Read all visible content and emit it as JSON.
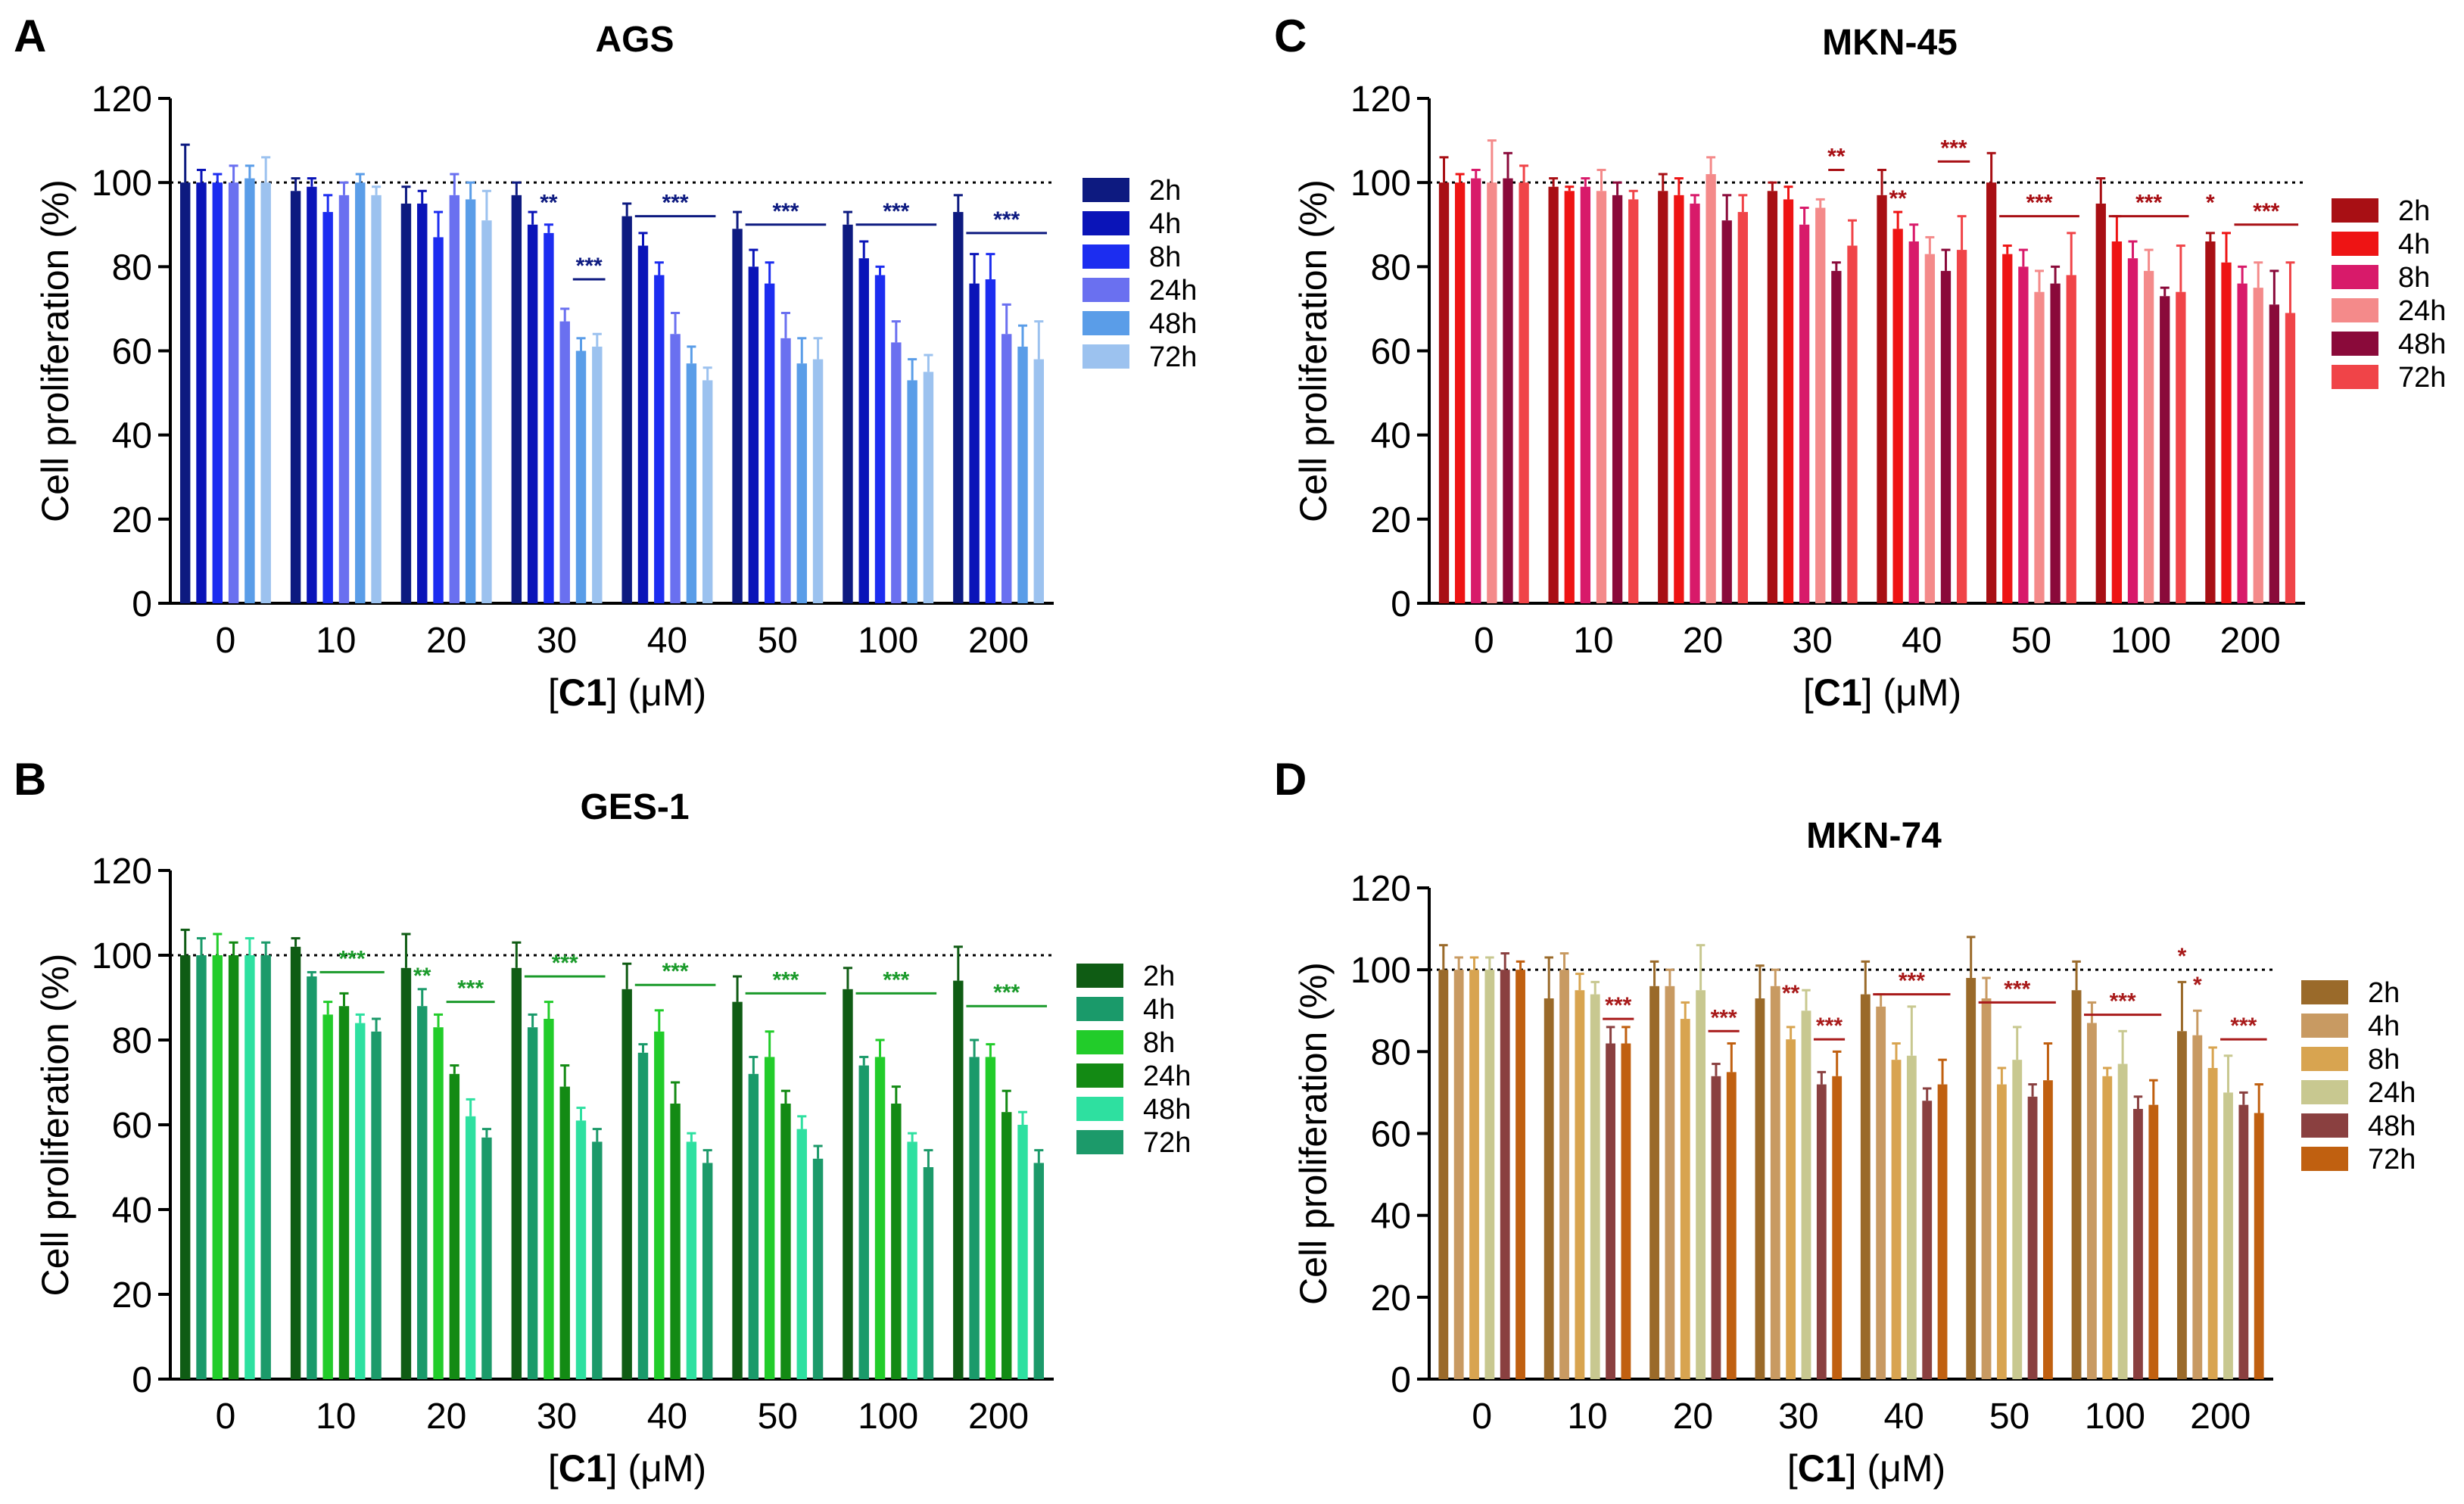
{
  "chart_data": [
    {
      "letter": "A",
      "type": "bar",
      "title": "AGS",
      "xlabel_bold": "C1",
      "xlabel_prefix": "[",
      "xlabel_suffix": "] (μM)",
      "ylabel": "Cell proliferation (%)",
      "ylim": [
        0,
        120
      ],
      "yticks": [
        "0",
        "20",
        "40",
        "60",
        "80",
        "100",
        "120"
      ],
      "reference_line": 100,
      "categories": [
        "0",
        "10",
        "20",
        "30",
        "40",
        "50",
        "100",
        "200"
      ],
      "series": [
        {
          "name": "2h",
          "color": "#0d1a80",
          "values": [
            100,
            98,
            95,
            97,
            92,
            89,
            90,
            93
          ],
          "errors": [
            9,
            3,
            4,
            3,
            3,
            4,
            3,
            4
          ]
        },
        {
          "name": "4h",
          "color": "#0a14b8",
          "values": [
            100,
            99,
            95,
            90,
            85,
            80,
            82,
            76
          ],
          "errors": [
            3,
            2,
            3,
            3,
            3,
            4,
            4,
            7
          ]
        },
        {
          "name": "8h",
          "color": "#1c2df0",
          "values": [
            100,
            93,
            87,
            88,
            78,
            76,
            78,
            77
          ],
          "errors": [
            2,
            4,
            6,
            2,
            3,
            5,
            2,
            6
          ]
        },
        {
          "name": "24h",
          "color": "#6a70f0",
          "values": [
            100,
            97,
            97,
            67,
            64,
            63,
            62,
            64
          ],
          "errors": [
            4,
            3,
            5,
            3,
            5,
            6,
            5,
            7
          ]
        },
        {
          "name": "48h",
          "color": "#5a9de8",
          "values": [
            101,
            100,
            96,
            60,
            57,
            57,
            53,
            61
          ],
          "errors": [
            3,
            2,
            4,
            3,
            4,
            6,
            5,
            5
          ]
        },
        {
          "name": "72h",
          "color": "#9cc2ef",
          "values": [
            100,
            97,
            91,
            61,
            53,
            58,
            55,
            58
          ],
          "errors": [
            6,
            2,
            7,
            3,
            3,
            5,
            4,
            9
          ]
        }
      ],
      "sig_color": "#0d1a80",
      "annotations": [
        {
          "text": "**",
          "group": 3,
          "bar_from": 2,
          "bar_to": 2,
          "y": 92,
          "line": false
        },
        {
          "text": "***",
          "group": 3,
          "bar_from": 4,
          "bar_to": 5,
          "y": 77,
          "line": true
        },
        {
          "text": "***",
          "group": 4,
          "bar_from": 1,
          "bar_to": 5,
          "y": 92,
          "line": true
        },
        {
          "text": "***",
          "group": 5,
          "bar_from": 1,
          "bar_to": 5,
          "y": 90,
          "line": true
        },
        {
          "text": "***",
          "group": 6,
          "bar_from": 1,
          "bar_to": 5,
          "y": 90,
          "line": true
        },
        {
          "text": "***",
          "group": 7,
          "bar_from": 1,
          "bar_to": 5,
          "y": 88,
          "line": true
        }
      ]
    },
    {
      "letter": "B",
      "type": "bar",
      "title": "GES-1",
      "xlabel_bold": "C1",
      "xlabel_prefix": "[",
      "xlabel_suffix": "] (μM)",
      "ylabel": "Cell proliferation (%)",
      "ylim": [
        0,
        120
      ],
      "yticks": [
        "0",
        "20",
        "40",
        "60",
        "80",
        "100",
        "120"
      ],
      "reference_line": 100,
      "categories": [
        "0",
        "10",
        "20",
        "30",
        "40",
        "50",
        "100",
        "200"
      ],
      "series": [
        {
          "name": "2h",
          "color": "#0f5c14",
          "values": [
            100,
            102,
            97,
            97,
            92,
            89,
            92,
            94
          ],
          "errors": [
            6,
            2,
            8,
            6,
            6,
            6,
            5,
            8
          ]
        },
        {
          "name": "4h",
          "color": "#1a9a6a",
          "values": [
            100,
            95,
            88,
            83,
            77,
            72,
            74,
            76
          ],
          "errors": [
            4,
            1,
            4,
            3,
            2,
            4,
            2,
            4
          ]
        },
        {
          "name": "8h",
          "color": "#22cc2a",
          "values": [
            100,
            86,
            83,
            85,
            82,
            76,
            76,
            76
          ],
          "errors": [
            5,
            3,
            3,
            4,
            5,
            6,
            4,
            3
          ]
        },
        {
          "name": "24h",
          "color": "#138a14",
          "values": [
            100,
            88,
            72,
            69,
            65,
            65,
            65,
            63
          ],
          "errors": [
            3,
            3,
            2,
            5,
            5,
            3,
            4,
            5
          ]
        },
        {
          "name": "48h",
          "color": "#2ee0a0",
          "values": [
            100,
            84,
            62,
            61,
            56,
            59,
            56,
            60
          ],
          "errors": [
            4,
            2,
            4,
            3,
            2,
            3,
            2,
            3
          ]
        },
        {
          "name": "72h",
          "color": "#1c9a6a",
          "values": [
            100,
            82,
            57,
            56,
            51,
            52,
            50,
            51
          ],
          "errors": [
            3,
            3,
            2,
            3,
            3,
            3,
            4,
            3
          ]
        }
      ],
      "sig_color": "#1a9a2a",
      "annotations": [
        {
          "text": "***",
          "group": 1,
          "bar_from": 2,
          "bar_to": 5,
          "y": 96,
          "line": true
        },
        {
          "text": "**",
          "group": 2,
          "bar_from": 1,
          "bar_to": 1,
          "y": 92,
          "line": false
        },
        {
          "text": "***",
          "group": 2,
          "bar_from": 3,
          "bar_to": 5,
          "y": 89,
          "line": true
        },
        {
          "text": "***",
          "group": 3,
          "bar_from": 1,
          "bar_to": 5,
          "y": 95,
          "line": true
        },
        {
          "text": "***",
          "group": 4,
          "bar_from": 1,
          "bar_to": 5,
          "y": 93,
          "line": true
        },
        {
          "text": "***",
          "group": 5,
          "bar_from": 1,
          "bar_to": 5,
          "y": 91,
          "line": true
        },
        {
          "text": "***",
          "group": 6,
          "bar_from": 1,
          "bar_to": 5,
          "y": 91,
          "line": true
        },
        {
          "text": "***",
          "group": 7,
          "bar_from": 1,
          "bar_to": 5,
          "y": 88,
          "line": true
        }
      ]
    },
    {
      "letter": "C",
      "type": "bar",
      "title": "MKN-45",
      "xlabel_bold": "C1",
      "xlabel_prefix": "[",
      "xlabel_suffix": "] (μM)",
      "ylabel": "Cell proliferation (%)",
      "ylim": [
        0,
        120
      ],
      "yticks": [
        "0",
        "20",
        "40",
        "60",
        "80",
        "100",
        "120"
      ],
      "reference_line": 100,
      "categories": [
        "0",
        "10",
        "20",
        "30",
        "40",
        "50",
        "100",
        "200"
      ],
      "series": [
        {
          "name": "2h",
          "color": "#a80f14",
          "values": [
            100,
            99,
            98,
            98,
            97,
            100,
            95,
            86
          ],
          "errors": [
            6,
            2,
            4,
            2,
            6,
            7,
            6,
            2
          ]
        },
        {
          "name": "4h",
          "color": "#ee1414",
          "values": [
            100,
            98,
            97,
            96,
            89,
            83,
            86,
            81
          ],
          "errors": [
            2,
            1,
            4,
            3,
            4,
            2,
            6,
            7
          ]
        },
        {
          "name": "8h",
          "color": "#d81a6a",
          "values": [
            101,
            99,
            95,
            90,
            86,
            80,
            82,
            76
          ],
          "errors": [
            2,
            2,
            2,
            4,
            4,
            4,
            4,
            4
          ]
        },
        {
          "name": "24h",
          "color": "#f48a8a",
          "values": [
            100,
            98,
            102,
            94,
            83,
            74,
            79,
            75
          ],
          "errors": [
            10,
            5,
            4,
            2,
            4,
            5,
            5,
            6
          ]
        },
        {
          "name": "48h",
          "color": "#8a0a3a",
          "values": [
            101,
            97,
            91,
            79,
            79,
            76,
            73,
            71
          ],
          "errors": [
            6,
            3,
            6,
            2,
            5,
            4,
            2,
            8
          ]
        },
        {
          "name": "72h",
          "color": "#f04448",
          "values": [
            100,
            96,
            93,
            85,
            84,
            78,
            74,
            69
          ],
          "errors": [
            4,
            2,
            4,
            6,
            8,
            10,
            11,
            12
          ]
        }
      ],
      "sig_color": "#a80f14",
      "annotations": [
        {
          "text": "**",
          "group": 3,
          "bar_from": 4,
          "bar_to": 4,
          "y": 103,
          "line": true
        },
        {
          "text": "**",
          "group": 4,
          "bar_from": 1,
          "bar_to": 1,
          "y": 93,
          "line": false
        },
        {
          "text": "***",
          "group": 4,
          "bar_from": 4,
          "bar_to": 5,
          "y": 105,
          "line": true
        },
        {
          "text": "***",
          "group": 5,
          "bar_from": 1,
          "bar_to": 5,
          "y": 92,
          "line": true
        },
        {
          "text": "***",
          "group": 6,
          "bar_from": 1,
          "bar_to": 5,
          "y": 92,
          "line": true
        },
        {
          "text": "*",
          "group": 7,
          "bar_from": 0,
          "bar_to": 0,
          "y": 92,
          "line": false
        },
        {
          "text": "***",
          "group": 7,
          "bar_from": 2,
          "bar_to": 5,
          "y": 90,
          "line": true
        }
      ]
    },
    {
      "letter": "D",
      "type": "bar",
      "title": "MKN-74",
      "xlabel_bold": "C1",
      "xlabel_prefix": "[",
      "xlabel_suffix": "] (μM)",
      "ylabel": "Cell proliferation (%)",
      "ylim": [
        0,
        120
      ],
      "yticks": [
        "0",
        "20",
        "40",
        "60",
        "80",
        "100",
        "120"
      ],
      "reference_line": 100,
      "categories": [
        "0",
        "10",
        "20",
        "30",
        "40",
        "50",
        "100",
        "200"
      ],
      "series": [
        {
          "name": "2h",
          "color": "#9a6a2a",
          "values": [
            100,
            93,
            96,
            93,
            94,
            98,
            95,
            85
          ],
          "errors": [
            6,
            10,
            6,
            8,
            8,
            10,
            7,
            12
          ]
        },
        {
          "name": "4h",
          "color": "#c89a62",
          "values": [
            100,
            100,
            96,
            96,
            91,
            93,
            87,
            84
          ],
          "errors": [
            3,
            4,
            4,
            4,
            3,
            5,
            5,
            6
          ]
        },
        {
          "name": "8h",
          "color": "#d8a450",
          "values": [
            100,
            95,
            88,
            83,
            78,
            72,
            74,
            76
          ],
          "errors": [
            3,
            4,
            4,
            3,
            4,
            4,
            2,
            5
          ]
        },
        {
          "name": "24h",
          "color": "#c8c890",
          "values": [
            100,
            94,
            95,
            90,
            79,
            78,
            77,
            70
          ],
          "errors": [
            3,
            3,
            11,
            5,
            12,
            8,
            8,
            9
          ]
        },
        {
          "name": "48h",
          "color": "#8a4040",
          "values": [
            100,
            82,
            74,
            72,
            68,
            69,
            66,
            67
          ],
          "errors": [
            4,
            4,
            3,
            3,
            3,
            3,
            3,
            3
          ]
        },
        {
          "name": "72h",
          "color": "#c06010",
          "values": [
            100,
            82,
            75,
            74,
            72,
            73,
            67,
            65
          ],
          "errors": [
            2,
            4,
            7,
            6,
            6,
            9,
            6,
            7
          ]
        }
      ],
      "sig_color": "#a81a1a",
      "annotations": [
        {
          "text": "***",
          "group": 1,
          "bar_from": 4,
          "bar_to": 5,
          "y": 88,
          "line": true
        },
        {
          "text": "***",
          "group": 2,
          "bar_from": 4,
          "bar_to": 5,
          "y": 85,
          "line": true
        },
        {
          "text": "**",
          "group": 3,
          "bar_from": 2,
          "bar_to": 2,
          "y": 91,
          "line": false
        },
        {
          "text": "***",
          "group": 3,
          "bar_from": 4,
          "bar_to": 5,
          "y": 83,
          "line": true
        },
        {
          "text": "***",
          "group": 4,
          "bar_from": 1,
          "bar_to": 5,
          "y": 94,
          "line": true
        },
        {
          "text": "***",
          "group": 5,
          "bar_from": 1,
          "bar_to": 5,
          "y": 92,
          "line": true
        },
        {
          "text": "***",
          "group": 6,
          "bar_from": 1,
          "bar_to": 5,
          "y": 89,
          "line": true
        },
        {
          "text": "*",
          "group": 7,
          "bar_from": 0,
          "bar_to": 0,
          "y": 100,
          "line": false
        },
        {
          "text": "*",
          "group": 7,
          "bar_from": 1,
          "bar_to": 1,
          "y": 93,
          "line": false
        },
        {
          "text": "***",
          "group": 7,
          "bar_from": 3,
          "bar_to": 5,
          "y": 83,
          "line": true
        }
      ]
    }
  ]
}
